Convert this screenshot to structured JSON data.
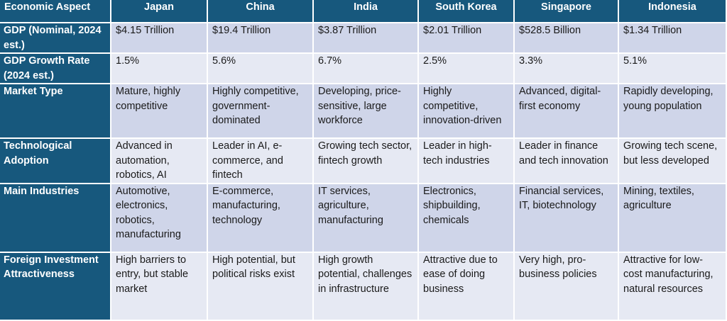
{
  "header": {
    "aspect_label": "Economic Aspect",
    "countries": [
      "Japan",
      "China",
      "India",
      "South Korea",
      "Singapore",
      "Indonesia"
    ]
  },
  "rows": [
    {
      "aspect": "GDP (Nominal, 2024 est.)",
      "values": [
        "$4.15 Trillion",
        "$19.4 Trillion",
        "$3.87 Trillion",
        "$2.01 Trillion",
        "$528.5 Billion",
        "$1.34 Trillion"
      ]
    },
    {
      "aspect": "GDP Growth Rate (2024 est.)",
      "values": [
        "1.5%",
        "5.6%",
        "6.7%",
        "2.5%",
        "3.3%",
        "5.1%"
      ]
    },
    {
      "aspect": "Market Type",
      "values": [
        "Mature, highly competitive",
        "Highly competitive, government-dominated",
        "Developing, price-sensitive, large workforce",
        "Highly competitive, innovation-driven",
        "Advanced, digital-first economy",
        "Rapidly developing, young population"
      ]
    },
    {
      "aspect": "Technological Adoption",
      "values": [
        "Advanced in automation, robotics, AI",
        "Leader in AI, e-commerce, and fintech",
        "Growing tech sector, fintech growth",
        "Leader in high-tech industries",
        "Leader in finance and tech innovation",
        "Growing tech scene, but less developed"
      ]
    },
    {
      "aspect": "Main Industries",
      "values": [
        "Automotive, electronics, robotics, manufacturing",
        "E-commerce, manufacturing, technology",
        "IT services, agriculture, manufacturing",
        "Electronics, shipbuilding, chemicals",
        "Financial services, IT, biotechnology",
        "Mining, textiles, agriculture"
      ]
    },
    {
      "aspect": "Foreign Investment Attractiveness",
      "values": [
        "High barriers to entry, but stable market",
        "High potential, but political risks exist",
        "High growth potential, challenges in infrastructure",
        "Attractive due to ease of doing business",
        "Very high, pro-business policies",
        "Attractive for low-cost manufacturing, natural resources"
      ]
    }
  ],
  "colors": {
    "header_bg": "#17587d",
    "row_odd": "#cfd5e9",
    "row_even": "#e6e9f3"
  }
}
